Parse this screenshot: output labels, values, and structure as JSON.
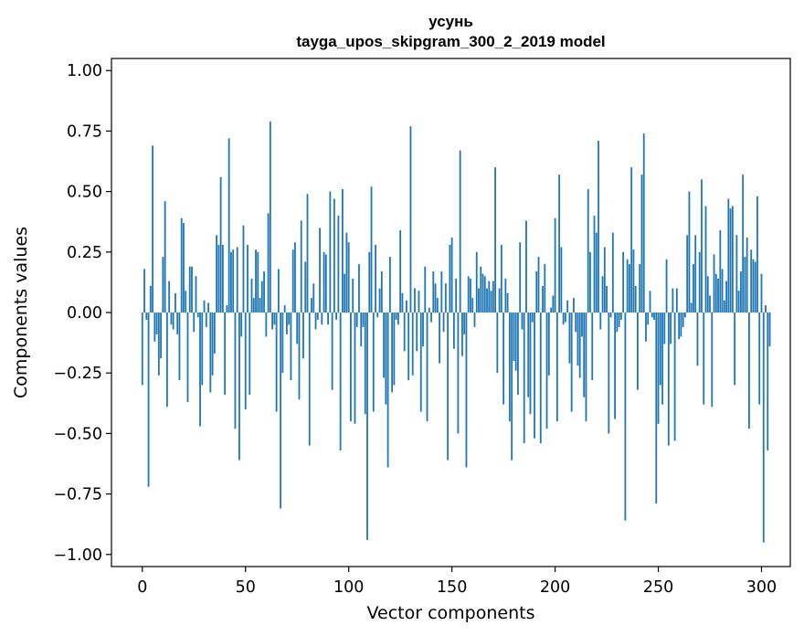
{
  "chart_data": {
    "type": "bar",
    "title": "усунь",
    "subtitle": "tayga_upos_skipgram_300_2_2019 model",
    "xlabel": "Vector components",
    "ylabel": "Components values",
    "xlim": [
      -14.95,
      313.95
    ],
    "ylim": [
      -1.05,
      1.05
    ],
    "xticks": [
      0,
      50,
      100,
      150,
      200,
      250,
      300
    ],
    "xtick_labels": [
      "0",
      "50",
      "100",
      "150",
      "200",
      "250",
      "300"
    ],
    "yticks": [
      1.0,
      0.75,
      0.5,
      0.25,
      0.0,
      -0.25,
      -0.5,
      -0.75,
      -1.0
    ],
    "ytick_labels": [
      "1.00",
      "0.75",
      "0.50",
      "0.25",
      "0.00",
      "−0.25",
      "−0.50",
      "−0.75",
      "−1.00"
    ],
    "bar_color": "#1f77b4",
    "grid": false,
    "series": [
      {
        "values": [
          -0.3,
          0.18,
          -0.03,
          -0.72,
          0.11,
          0.69,
          -0.12,
          -0.09,
          -0.26,
          -0.19,
          0.23,
          0.46,
          -0.39,
          0.13,
          -0.05,
          -0.07,
          0.08,
          -0.09,
          -0.28,
          0.39,
          0.37,
          0.09,
          -0.37,
          0.19,
          0.19,
          -0.08,
          0.15,
          -0.02,
          -0.47,
          -0.3,
          0.05,
          -0.06,
          0.04,
          -0.33,
          -0.26,
          -0.17,
          0.32,
          0.28,
          0.56,
          0.28,
          -0.34,
          0.03,
          0.72,
          0.25,
          0.26,
          -0.48,
          0.27,
          -0.61,
          -0.1,
          0.36,
          -0.4,
          0.28,
          -0.34,
          0.14,
          0.06,
          0.26,
          0.25,
          0.06,
          0.13,
          0.17,
          -0.1,
          0.41,
          0.79,
          -0.07,
          -0.05,
          -0.41,
          0.18,
          -0.81,
          -0.25,
          0.03,
          -0.09,
          -0.05,
          -0.28,
          0.26,
          0.29,
          -0.13,
          -0.36,
          0.38,
          -0.19,
          0.21,
          0.49,
          -0.55,
          0.06,
          0.12,
          -0.07,
          -0.03,
          0.35,
          -0.05,
          0.25,
          0.24,
          -0.05,
          0.5,
          -0.32,
          0.47,
          -0.03,
          0.4,
          -0.57,
          0.51,
          0.16,
          0.33,
          0.29,
          -0.45,
          0.14,
          -0.46,
          -0.06,
          0.2,
          -0.14,
          -0.06,
          -0.42,
          -0.94,
          0.25,
          0.52,
          -0.41,
          0.28,
          -0.02,
          0.1,
          0.17,
          -0.27,
          -0.38,
          -0.64,
          0.23,
          -0.33,
          -0.3,
          -0.03,
          -0.05,
          0.34,
          0.08,
          -0.16,
          0.05,
          -0.28,
          0.77,
          -0.26,
          0.1,
          -0.16,
          0.09,
          -0.41,
          -0.14,
          0.19,
          -0.45,
          0.02,
          -0.04,
          0.17,
          0.12,
          0.06,
          -0.21,
          0.17,
          -0.08,
          0.12,
          -0.61,
          0.28,
          0.31,
          -0.15,
          0.14,
          -0.5,
          0.67,
          -0.18,
          -0.09,
          -0.64,
          0.15,
          0.14,
          0.06,
          -0.06,
          0.25,
          0.1,
          0.19,
          0.16,
          0.15,
          0.1,
          0.13,
          0.09,
          0.13,
          0.6,
          -0.25,
          0.1,
          0.28,
          -0.38,
          0.14,
          0.08,
          -0.45,
          -0.61,
          -0.2,
          -0.24,
          -0.34,
          0.29,
          -0.07,
          -0.54,
          0.38,
          -0.35,
          -0.42,
          -0.04,
          -0.52,
          0.17,
          0.23,
          -0.54,
          0.11,
          0.2,
          -0.48,
          -0.26,
          0.02,
          0.07,
          0.39,
          -0.45,
          0.57,
          0.27,
          -0.05,
          -0.04,
          0.05,
          -0.21,
          -0.41,
          0.06,
          -0.08,
          -0.22,
          -0.27,
          -0.1,
          -0.35,
          -0.45,
          0.51,
          0.25,
          -0.28,
          0.4,
          0.33,
          0.71,
          -0.07,
          0.15,
          0.27,
          0.11,
          -0.5,
          -0.02,
          0.33,
          -0.44,
          -0.08,
          -0.06,
          -0.03,
          0.25,
          -0.86,
          0.22,
          0.2,
          0.6,
          0.26,
          0.11,
          -0.32,
          0.2,
          0.57,
          0.74,
          -0.12,
          -0.05,
          0.09,
          -0.02,
          -0.03,
          -0.79,
          -0.46,
          -0.3,
          -0.38,
          -0.13,
          0.22,
          -0.55,
          -0.13,
          0.1,
          -0.53,
          0.1,
          -0.11,
          -0.1,
          -0.06,
          -0.02,
          0.32,
          0.5,
          0.04,
          0.2,
          0.32,
          -0.22,
          0.25,
          0.55,
          -0.38,
          0.44,
          0.15,
          0.07,
          -0.39,
          0.24,
          0.16,
          0.14,
          0.34,
          0.18,
          0.05,
          0.13,
          0.47,
          0.43,
          0.44,
          -0.3,
          0.32,
          0.09,
          0.17,
          0.57,
          0.23,
          0.31,
          -0.48,
          0.26,
          0.22,
          0.21,
          0.48,
          -0.38,
          0.16,
          -0.95,
          0.03,
          -0.57,
          -0.14
        ]
      }
    ]
  }
}
